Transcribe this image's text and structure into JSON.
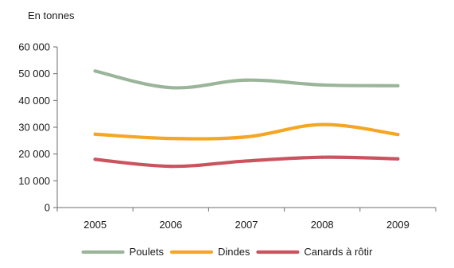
{
  "chart_data": {
    "type": "line",
    "title": "",
    "unit_label": "En tonnes",
    "xlabel": "",
    "ylabel": "",
    "categories": [
      "2005",
      "2006",
      "2007",
      "2008",
      "2009"
    ],
    "ylim": [
      0,
      60000
    ],
    "yticks": [
      0,
      10000,
      20000,
      30000,
      40000,
      50000,
      60000
    ],
    "ytick_labels": [
      "0",
      "10 000",
      "20 000",
      "30 000",
      "40 000",
      "50 000",
      "60 000"
    ],
    "grid": false,
    "smooth": true,
    "legend_position": "bottom",
    "series": [
      {
        "name": "Poulets",
        "color": "#9bb59b",
        "values": [
          51000,
          44800,
          47600,
          45800,
          45500
        ]
      },
      {
        "name": "Dindes",
        "color": "#f5a623",
        "values": [
          27400,
          25800,
          26400,
          31000,
          27300
        ]
      },
      {
        "name": "Canards à rôtir",
        "color": "#c9545e",
        "values": [
          18000,
          15400,
          17400,
          18800,
          18200
        ]
      }
    ]
  }
}
